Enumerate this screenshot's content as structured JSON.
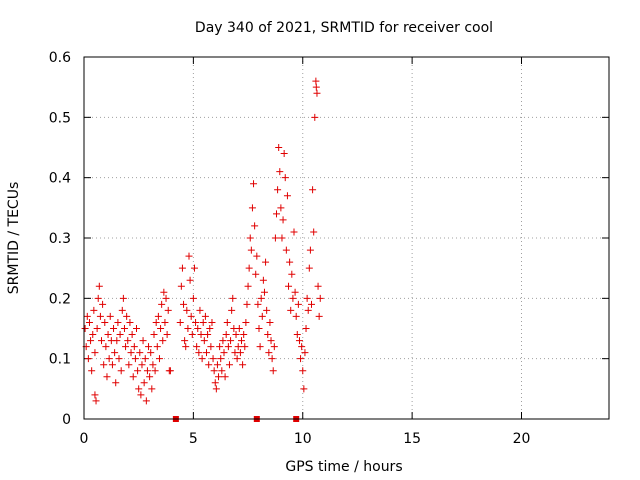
{
  "chart_data": {
    "type": "scatter",
    "title": "Day 340 of 2021, SRMTID for receiver cool",
    "xlabel": "GPS time / hours",
    "ylabel": "SRMTID / TECUs",
    "xlim": [
      0,
      24
    ],
    "ylim": [
      0,
      0.6
    ],
    "xticks": [
      0,
      5,
      10,
      15,
      20
    ],
    "yticks": [
      0,
      0.1,
      0.2,
      0.3,
      0.4,
      0.5,
      0.6
    ],
    "xtick_labels": [
      "0",
      "5",
      "10",
      "15",
      "20"
    ],
    "ytick_labels": [
      "0",
      "0.1",
      "0.2",
      "0.3",
      "0.4",
      "0.5",
      "0.6"
    ],
    "grid": true,
    "marker": "+",
    "color": "#e00000",
    "series": [
      {
        "name": "SRMTID",
        "points": [
          [
            0.05,
            0.15
          ],
          [
            0.1,
            0.12
          ],
          [
            0.15,
            0.17
          ],
          [
            0.2,
            0.1
          ],
          [
            0.25,
            0.16
          ],
          [
            0.3,
            0.13
          ],
          [
            0.35,
            0.08
          ],
          [
            0.4,
            0.14
          ],
          [
            0.45,
            0.18
          ],
          [
            0.5,
            0.11
          ],
          [
            0.5,
            0.04
          ],
          [
            0.55,
            0.03
          ],
          [
            0.6,
            0.15
          ],
          [
            0.65,
            0.2
          ],
          [
            0.7,
            0.22
          ],
          [
            0.75,
            0.17
          ],
          [
            0.8,
            0.13
          ],
          [
            0.85,
            0.19
          ],
          [
            0.9,
            0.09
          ],
          [
            0.95,
            0.16
          ],
          [
            1.0,
            0.12
          ],
          [
            1.05,
            0.07
          ],
          [
            1.1,
            0.14
          ],
          [
            1.15,
            0.1
          ],
          [
            1.2,
            0.17
          ],
          [
            1.25,
            0.13
          ],
          [
            1.3,
            0.09
          ],
          [
            1.35,
            0.15
          ],
          [
            1.4,
            0.11
          ],
          [
            1.45,
            0.06
          ],
          [
            1.5,
            0.13
          ],
          [
            1.55,
            0.16
          ],
          [
            1.6,
            0.1
          ],
          [
            1.65,
            0.14
          ],
          [
            1.7,
            0.08
          ],
          [
            1.75,
            0.18
          ],
          [
            1.8,
            0.2
          ],
          [
            1.85,
            0.15
          ],
          [
            1.9,
            0.12
          ],
          [
            1.95,
            0.17
          ],
          [
            2.0,
            0.13
          ],
          [
            2.05,
            0.09
          ],
          [
            2.1,
            0.16
          ],
          [
            2.15,
            0.11
          ],
          [
            2.2,
            0.14
          ],
          [
            2.25,
            0.07
          ],
          [
            2.3,
            0.12
          ],
          [
            2.35,
            0.1
          ],
          [
            2.4,
            0.15
          ],
          [
            2.45,
            0.08
          ],
          [
            2.5,
            0.05
          ],
          [
            2.55,
            0.11
          ],
          [
            2.6,
            0.04
          ],
          [
            2.65,
            0.09
          ],
          [
            2.7,
            0.13
          ],
          [
            2.75,
            0.06
          ],
          [
            2.8,
            0.1
          ],
          [
            2.85,
            0.03
          ],
          [
            2.9,
            0.08
          ],
          [
            2.95,
            0.12
          ],
          [
            3.0,
            0.07
          ],
          [
            3.05,
            0.11
          ],
          [
            3.1,
            0.05
          ],
          [
            3.15,
            0.09
          ],
          [
            3.2,
            0.14
          ],
          [
            3.25,
            0.08
          ],
          [
            3.3,
            0.16
          ],
          [
            3.35,
            0.12
          ],
          [
            3.4,
            0.17
          ],
          [
            3.45,
            0.1
          ],
          [
            3.5,
            0.15
          ],
          [
            3.55,
            0.19
          ],
          [
            3.6,
            0.13
          ],
          [
            3.65,
            0.21
          ],
          [
            3.7,
            0.16
          ],
          [
            3.75,
            0.2
          ],
          [
            3.8,
            0.14
          ],
          [
            3.85,
            0.18
          ],
          [
            3.9,
            0.08
          ],
          [
            3.95,
            0.08
          ],
          [
            4.4,
            0.16
          ],
          [
            4.45,
            0.22
          ],
          [
            4.5,
            0.25
          ],
          [
            4.55,
            0.19
          ],
          [
            4.6,
            0.13
          ],
          [
            4.65,
            0.12
          ],
          [
            4.7,
            0.18
          ],
          [
            4.75,
            0.15
          ],
          [
            4.8,
            0.27
          ],
          [
            4.85,
            0.23
          ],
          [
            4.9,
            0.17
          ],
          [
            4.95,
            0.14
          ],
          [
            5.0,
            0.2
          ],
          [
            5.05,
            0.25
          ],
          [
            5.1,
            0.16
          ],
          [
            5.15,
            0.12
          ],
          [
            5.2,
            0.15
          ],
          [
            5.25,
            0.11
          ],
          [
            5.3,
            0.18
          ],
          [
            5.35,
            0.14
          ],
          [
            5.4,
            0.1
          ],
          [
            5.45,
            0.16
          ],
          [
            5.5,
            0.13
          ],
          [
            5.55,
            0.17
          ],
          [
            5.6,
            0.11
          ],
          [
            5.65,
            0.14
          ],
          [
            5.7,
            0.09
          ],
          [
            5.75,
            0.15
          ],
          [
            5.8,
            0.12
          ],
          [
            5.85,
            0.16
          ],
          [
            5.9,
            0.1
          ],
          [
            5.95,
            0.08
          ],
          [
            6.0,
            0.06
          ],
          [
            6.05,
            0.05
          ],
          [
            6.1,
            0.09
          ],
          [
            6.15,
            0.07
          ],
          [
            6.2,
            0.12
          ],
          [
            6.25,
            0.1
          ],
          [
            6.3,
            0.08
          ],
          [
            6.35,
            0.13
          ],
          [
            6.4,
            0.11
          ],
          [
            6.45,
            0.07
          ],
          [
            6.5,
            0.14
          ],
          [
            6.55,
            0.16
          ],
          [
            6.6,
            0.12
          ],
          [
            6.65,
            0.09
          ],
          [
            6.7,
            0.13
          ],
          [
            6.75,
            0.18
          ],
          [
            6.8,
            0.2
          ],
          [
            6.85,
            0.15
          ],
          [
            6.9,
            0.11
          ],
          [
            6.95,
            0.14
          ],
          [
            7.0,
            0.1
          ],
          [
            7.05,
            0.12
          ],
          [
            7.1,
            0.15
          ],
          [
            7.15,
            0.11
          ],
          [
            7.2,
            0.13
          ],
          [
            7.25,
            0.09
          ],
          [
            7.3,
            0.14
          ],
          [
            7.35,
            0.12
          ],
          [
            7.4,
            0.16
          ],
          [
            7.45,
            0.19
          ],
          [
            7.5,
            0.22
          ],
          [
            7.55,
            0.25
          ],
          [
            7.6,
            0.3
          ],
          [
            7.65,
            0.28
          ],
          [
            7.7,
            0.35
          ],
          [
            7.75,
            0.39
          ],
          [
            7.8,
            0.32
          ],
          [
            7.85,
            0.24
          ],
          [
            7.9,
            0.27
          ],
          [
            7.95,
            0.19
          ],
          [
            8.0,
            0.15
          ],
          [
            8.05,
            0.12
          ],
          [
            8.1,
            0.2
          ],
          [
            8.15,
            0.17
          ],
          [
            8.2,
            0.23
          ],
          [
            8.25,
            0.21
          ],
          [
            8.3,
            0.26
          ],
          [
            8.35,
            0.18
          ],
          [
            8.4,
            0.14
          ],
          [
            8.45,
            0.11
          ],
          [
            8.5,
            0.16
          ],
          [
            8.55,
            0.13
          ],
          [
            8.6,
            0.1
          ],
          [
            8.65,
            0.08
          ],
          [
            8.7,
            0.12
          ],
          [
            8.75,
            0.3
          ],
          [
            8.8,
            0.34
          ],
          [
            8.85,
            0.38
          ],
          [
            8.9,
            0.45
          ],
          [
            8.95,
            0.41
          ],
          [
            9.0,
            0.35
          ],
          [
            9.05,
            0.3
          ],
          [
            9.1,
            0.33
          ],
          [
            9.15,
            0.44
          ],
          [
            9.2,
            0.4
          ],
          [
            9.25,
            0.28
          ],
          [
            9.3,
            0.37
          ],
          [
            9.35,
            0.22
          ],
          [
            9.4,
            0.26
          ],
          [
            9.45,
            0.18
          ],
          [
            9.5,
            0.24
          ],
          [
            9.55,
            0.2
          ],
          [
            9.6,
            0.31
          ],
          [
            9.65,
            0.21
          ],
          [
            9.7,
            0.17
          ],
          [
            9.75,
            0.14
          ],
          [
            9.8,
            0.19
          ],
          [
            9.85,
            0.13
          ],
          [
            9.9,
            0.1
          ],
          [
            9.95,
            0.12
          ],
          [
            10.0,
            0.08
          ],
          [
            10.05,
            0.05
          ],
          [
            10.1,
            0.11
          ],
          [
            10.15,
            0.15
          ],
          [
            10.2,
            0.2
          ],
          [
            10.25,
            0.18
          ],
          [
            10.3,
            0.25
          ],
          [
            10.35,
            0.28
          ],
          [
            10.4,
            0.19
          ],
          [
            10.45,
            0.38
          ],
          [
            10.5,
            0.31
          ],
          [
            10.55,
            0.5
          ],
          [
            10.6,
            0.56
          ],
          [
            10.62,
            0.55
          ],
          [
            10.65,
            0.54
          ],
          [
            10.7,
            0.22
          ],
          [
            10.75,
            0.17
          ],
          [
            10.8,
            0.2
          ]
        ]
      }
    ],
    "gap_markers": [
      4.2,
      7.9,
      9.7
    ]
  }
}
